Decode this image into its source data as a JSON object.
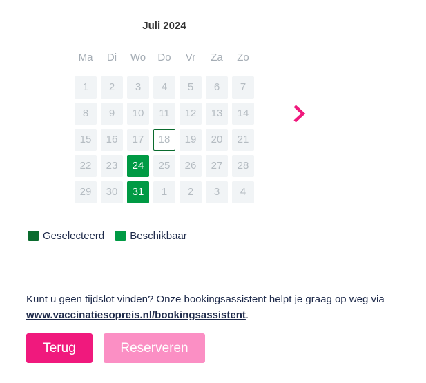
{
  "calendar": {
    "month_title": "Juli 2024",
    "weekdays": [
      "Ma",
      "Di",
      "Wo",
      "Do",
      "Vr",
      "Za",
      "Zo"
    ],
    "days": [
      {
        "label": "1",
        "status": "unavailable"
      },
      {
        "label": "2",
        "status": "unavailable"
      },
      {
        "label": "3",
        "status": "unavailable"
      },
      {
        "label": "4",
        "status": "unavailable"
      },
      {
        "label": "5",
        "status": "unavailable"
      },
      {
        "label": "6",
        "status": "unavailable"
      },
      {
        "label": "7",
        "status": "unavailable"
      },
      {
        "label": "8",
        "status": "unavailable"
      },
      {
        "label": "9",
        "status": "unavailable"
      },
      {
        "label": "10",
        "status": "unavailable"
      },
      {
        "label": "11",
        "status": "unavailable"
      },
      {
        "label": "12",
        "status": "unavailable"
      },
      {
        "label": "13",
        "status": "unavailable"
      },
      {
        "label": "14",
        "status": "unavailable"
      },
      {
        "label": "15",
        "status": "unavailable"
      },
      {
        "label": "16",
        "status": "unavailable"
      },
      {
        "label": "17",
        "status": "unavailable"
      },
      {
        "label": "18",
        "status": "today"
      },
      {
        "label": "19",
        "status": "unavailable"
      },
      {
        "label": "20",
        "status": "unavailable"
      },
      {
        "label": "21",
        "status": "unavailable"
      },
      {
        "label": "22",
        "status": "unavailable"
      },
      {
        "label": "23",
        "status": "unavailable"
      },
      {
        "label": "24",
        "status": "available"
      },
      {
        "label": "25",
        "status": "unavailable"
      },
      {
        "label": "26",
        "status": "unavailable"
      },
      {
        "label": "27",
        "status": "unavailable"
      },
      {
        "label": "28",
        "status": "unavailable"
      },
      {
        "label": "29",
        "status": "unavailable"
      },
      {
        "label": "30",
        "status": "unavailable"
      },
      {
        "label": "31",
        "status": "available"
      },
      {
        "label": "1",
        "status": "unavailable"
      },
      {
        "label": "2",
        "status": "unavailable"
      },
      {
        "label": "3",
        "status": "unavailable"
      },
      {
        "label": "4",
        "status": "unavailable"
      }
    ],
    "next_icon": "chevron-right-icon"
  },
  "legend": {
    "selected": {
      "label": "Geselecteerd",
      "color": "#0a6b2e"
    },
    "available": {
      "label": "Beschikbaar",
      "color": "#009a44"
    }
  },
  "help": {
    "text": "Kunt u geen tijdslot vinden? Onze bookingsassistent helpt je graag op weg via",
    "link": "www.vaccinatiesopreis.nl/bookingsassistent",
    "suffix": "."
  },
  "buttons": {
    "back": "Terug",
    "reserve": "Reserveren"
  },
  "colors": {
    "accent": "#f0197d",
    "accent_disabled": "#fb8fc4"
  }
}
